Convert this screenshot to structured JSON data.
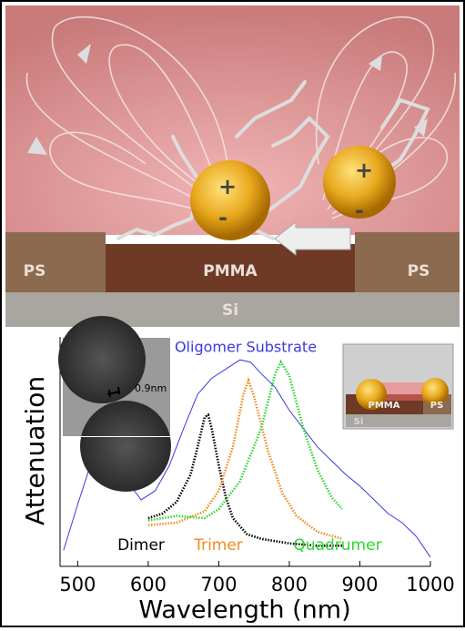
{
  "illustration": {
    "labels": [
      "PS",
      "PMMA",
      "PS",
      "Si"
    ],
    "charges": [
      "+",
      "-",
      "+",
      "-"
    ]
  },
  "chart_data": {
    "type": "line",
    "xlabel": "Wavelength (nm)",
    "ylabel": "Attenuation",
    "xlim": [
      475,
      1000
    ],
    "xticks": [
      500,
      600,
      700,
      800,
      900,
      1000
    ],
    "ylim": [
      0,
      1
    ],
    "series": [
      {
        "name": "Oligomer Substrate",
        "color": "#3a3adf",
        "style": "solid",
        "x": [
          480,
          500,
          520,
          535,
          550,
          570,
          590,
          610,
          630,
          650,
          670,
          690,
          710,
          730,
          745,
          760,
          780,
          800,
          820,
          840,
          860,
          880,
          900,
          920,
          940,
          960,
          980,
          1000
        ],
        "values": [
          0.07,
          0.27,
          0.46,
          0.53,
          0.5,
          0.37,
          0.29,
          0.33,
          0.44,
          0.6,
          0.75,
          0.82,
          0.86,
          0.9,
          0.89,
          0.84,
          0.78,
          0.68,
          0.6,
          0.52,
          0.46,
          0.4,
          0.35,
          0.29,
          0.23,
          0.19,
          0.13,
          0.04
        ]
      },
      {
        "name": "Dimer",
        "color": "#000000",
        "style": "dotted",
        "x": [
          600,
          620,
          640,
          660,
          670,
          680,
          685,
          690,
          700,
          710,
          720,
          740,
          760,
          800,
          840,
          875
        ],
        "values": [
          0.21,
          0.23,
          0.28,
          0.4,
          0.52,
          0.65,
          0.66,
          0.6,
          0.44,
          0.3,
          0.21,
          0.14,
          0.12,
          0.1,
          0.09,
          0.09
        ]
      },
      {
        "name": "Trimer",
        "color": "#f28a1c",
        "style": "dotted",
        "x": [
          600,
          640,
          680,
          700,
          720,
          735,
          742,
          750,
          770,
          790,
          810,
          840,
          875
        ],
        "values": [
          0.18,
          0.19,
          0.24,
          0.33,
          0.52,
          0.75,
          0.81,
          0.74,
          0.5,
          0.32,
          0.22,
          0.15,
          0.12
        ]
      },
      {
        "name": "Quadrumer",
        "color": "#2fd62f",
        "style": "dotted",
        "x": [
          600,
          640,
          680,
          700,
          730,
          760,
          780,
          788,
          800,
          820,
          840,
          860,
          875
        ],
        "values": [
          0.2,
          0.22,
          0.21,
          0.25,
          0.37,
          0.6,
          0.84,
          0.89,
          0.83,
          0.6,
          0.42,
          0.3,
          0.25
        ]
      }
    ],
    "insets": {
      "tem_gap": "0.9nm",
      "model_labels": [
        "PMMA",
        "PS",
        "Si"
      ]
    }
  }
}
